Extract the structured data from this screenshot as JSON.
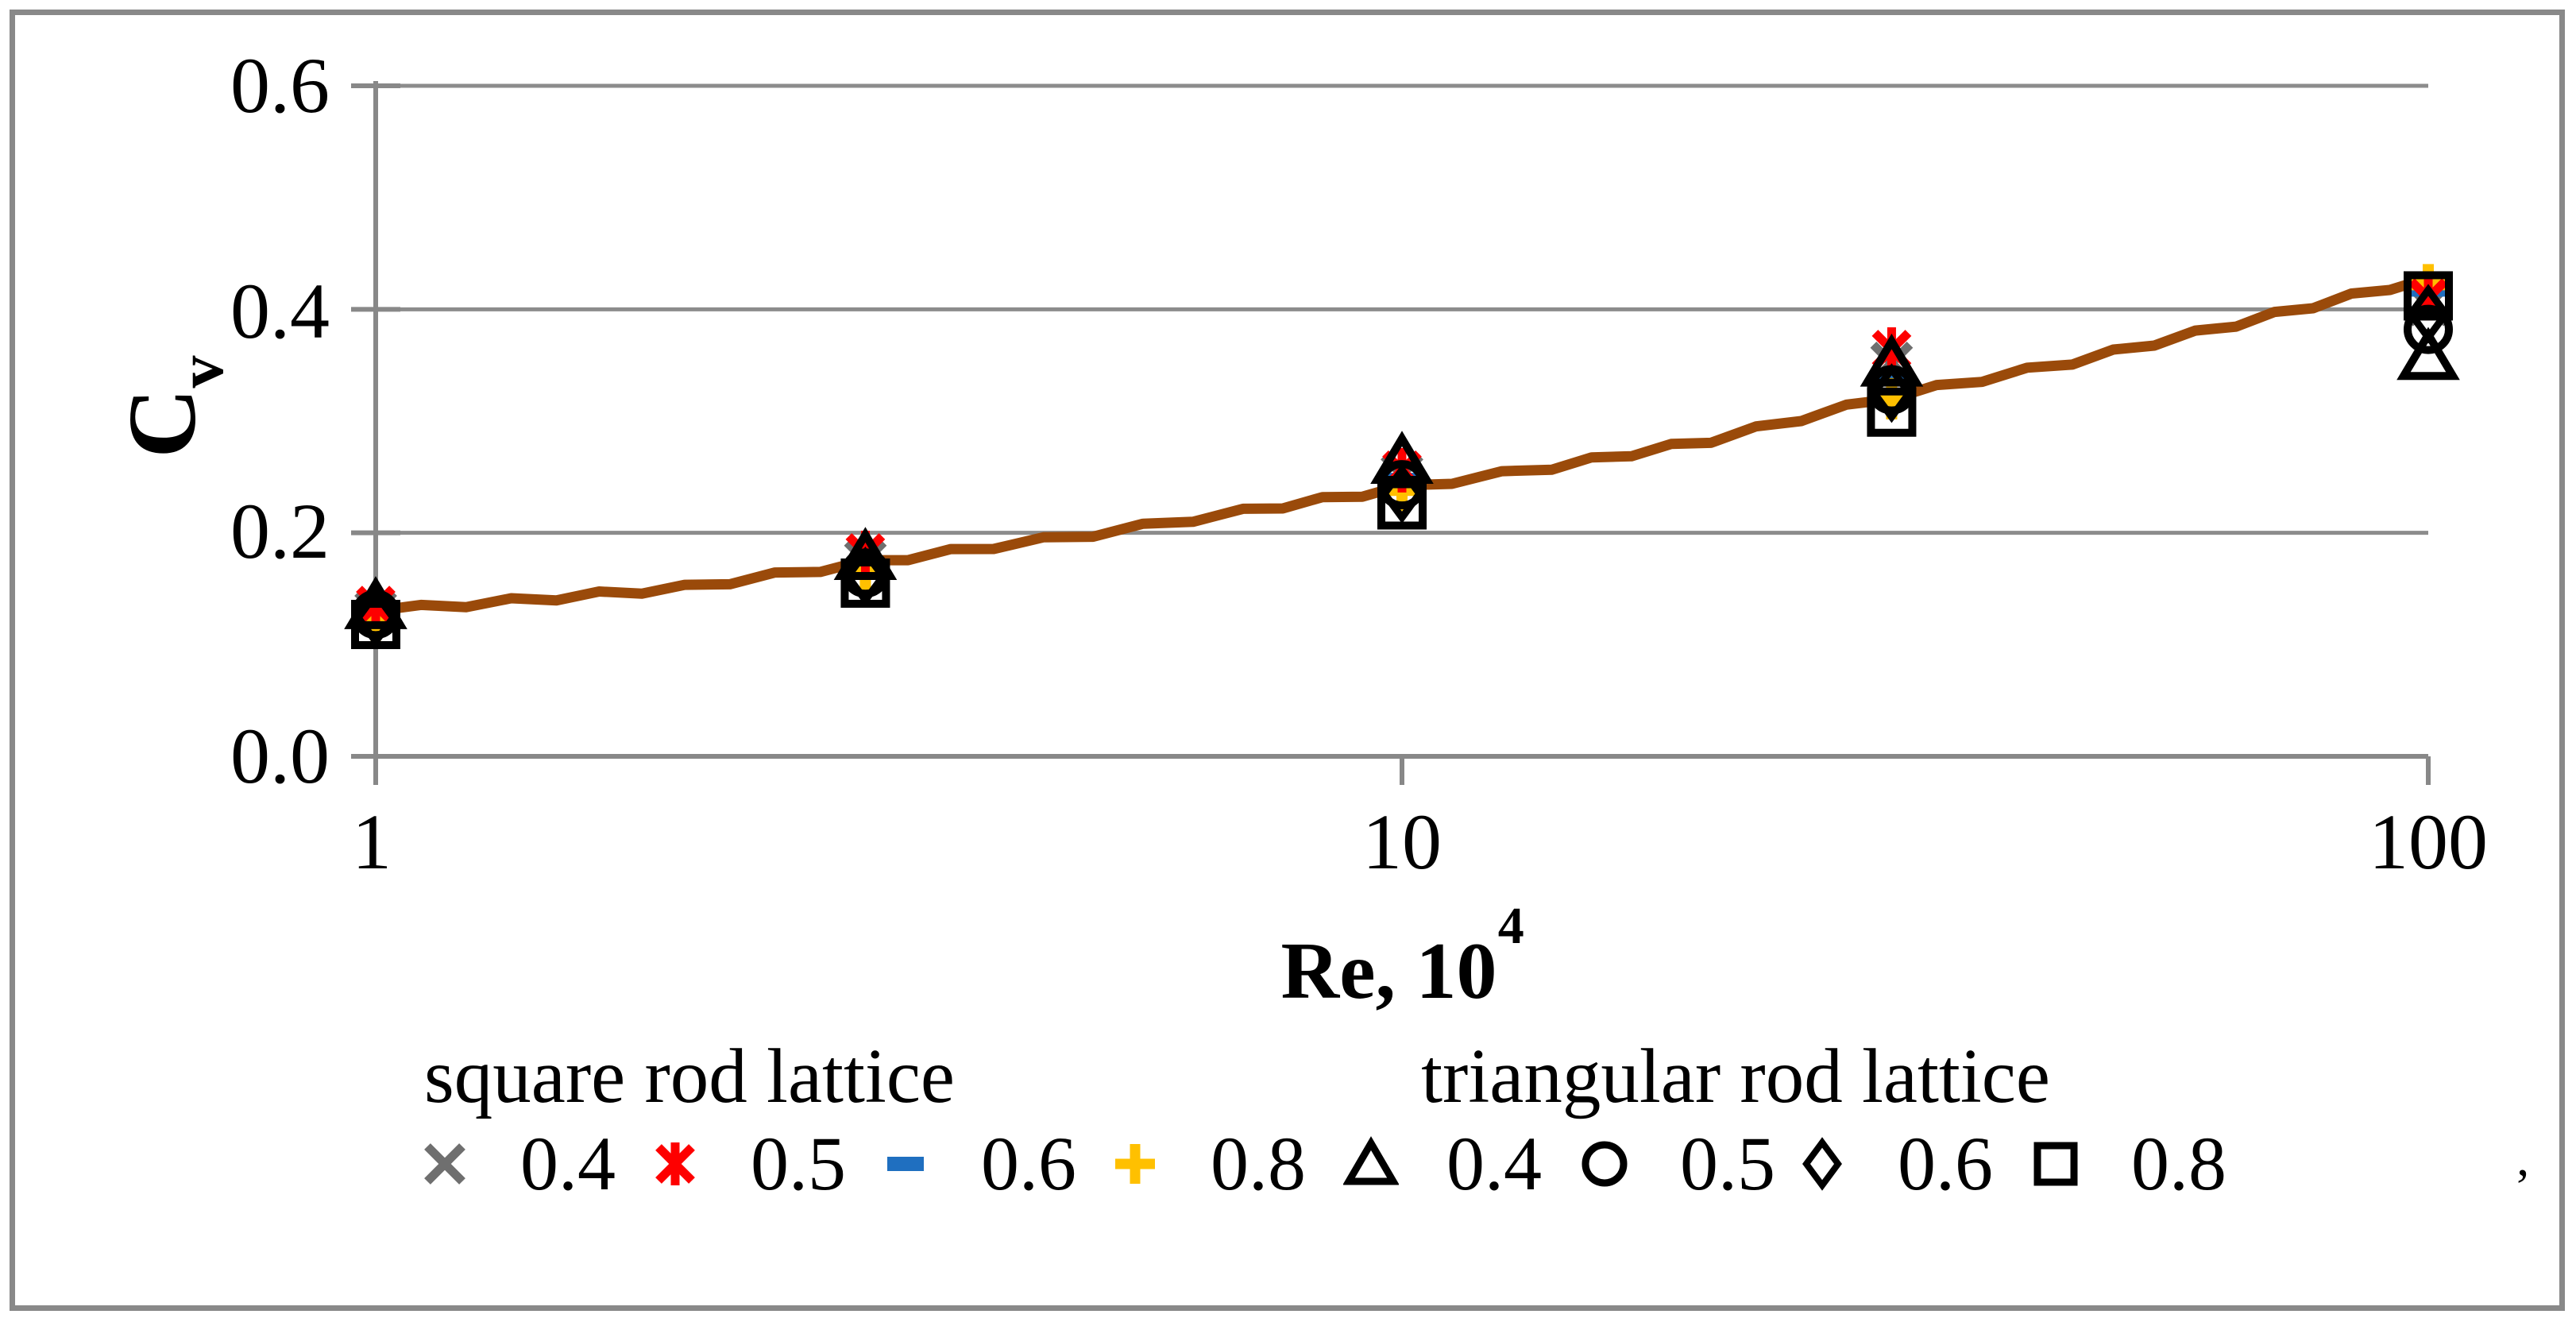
{
  "figure": {
    "background": "#ffffff",
    "border_color": "#898989",
    "stray_mark": "’"
  },
  "chart_data": {
    "type": "scatter",
    "title": "",
    "xlabel": {
      "main": "Re, 10",
      "sup": "4"
    },
    "ylabel": {
      "main": "C",
      "sub": "v"
    },
    "x_scale": "log",
    "xlim": [
      1,
      100
    ],
    "ylim": [
      0.0,
      0.6
    ],
    "xticks": [
      "1",
      "10",
      "100"
    ],
    "yticks": [
      "0.0",
      "0.2",
      "0.4",
      "0.6"
    ],
    "grid": "horizontal",
    "axis_color": "#888888",
    "grid_color": "#8C8C8C",
    "x": [
      1,
      3,
      10,
      30,
      100
    ],
    "groups": [
      {
        "name": "square rod lattice",
        "series": [
          {
            "label": "0.4",
            "marker": "x-cross",
            "color": "#6F6F6F",
            "values": [
              0.13,
              0.175,
              0.252,
              0.352,
              0.404
            ]
          },
          {
            "label": "0.5",
            "marker": "star",
            "color": "#FE0000",
            "values": [
              0.135,
              0.182,
              0.256,
              0.364,
              0.41
            ]
          },
          {
            "label": "0.6",
            "marker": "dash",
            "color": "#1F6FC0",
            "values": [
              0.128,
              0.172,
              0.248,
              0.34,
              0.417
            ]
          },
          {
            "label": "0.8",
            "marker": "plus",
            "color": "#FFC000",
            "values": [
              0.122,
              0.166,
              0.238,
              0.32,
              0.422
            ]
          }
        ]
      },
      {
        "name": "triangular rod lattice",
        "series": [
          {
            "label": "0.4",
            "marker": "triangle",
            "color": "#000000",
            "values": [
              0.133,
              0.177,
              0.263,
              0.35,
              0.356
            ]
          },
          {
            "label": "0.5",
            "marker": "circle",
            "color": "#000000",
            "values": [
              0.127,
              0.164,
              0.243,
              0.328,
              0.382
            ]
          },
          {
            "label": "0.6",
            "marker": "diamond",
            "color": "#000000",
            "values": [
              0.124,
              0.161,
              0.235,
              0.325,
              0.396
            ]
          },
          {
            "label": "0.8",
            "marker": "square",
            "color": "#000000",
            "values": [
              0.118,
              0.155,
              0.225,
              0.308,
              0.412
            ]
          }
        ]
      }
    ],
    "trend_line": {
      "color": "#9A4A0A",
      "x": [
        1,
        1.5,
        2,
        3,
        4,
        5,
        7,
        10,
        14,
        20,
        30,
        45,
        65,
        100
      ],
      "y": [
        0.13,
        0.142,
        0.151,
        0.173,
        0.188,
        0.199,
        0.219,
        0.24,
        0.259,
        0.283,
        0.322,
        0.353,
        0.387,
        0.428
      ]
    }
  }
}
